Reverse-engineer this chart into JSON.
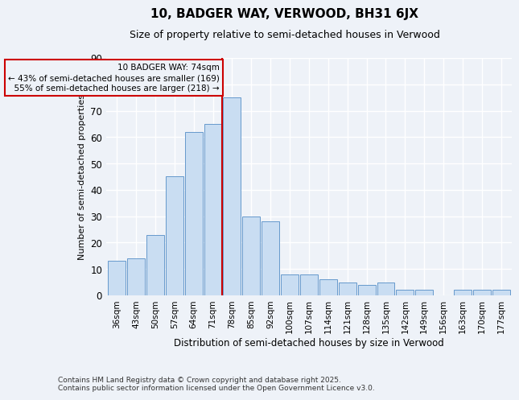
{
  "title": "10, BADGER WAY, VERWOOD, BH31 6JX",
  "subtitle": "Size of property relative to semi-detached houses in Verwood",
  "xlabel": "Distribution of semi-detached houses by size in Verwood",
  "ylabel": "Number of semi-detached properties",
  "categories": [
    "36sqm",
    "43sqm",
    "50sqm",
    "57sqm",
    "64sqm",
    "71sqm",
    "78sqm",
    "85sqm",
    "92sqm",
    "100sqm",
    "107sqm",
    "114sqm",
    "121sqm",
    "128sqm",
    "135sqm",
    "142sqm",
    "149sqm",
    "156sqm",
    "163sqm",
    "170sqm",
    "177sqm"
  ],
  "values": [
    13,
    14,
    23,
    45,
    62,
    65,
    75,
    30,
    28,
    8,
    8,
    6,
    5,
    4,
    5,
    2,
    2,
    0,
    2,
    2,
    2
  ],
  "bar_color": "#c9ddf2",
  "bar_edge_color": "#6699cc",
  "property_line_x": 5.5,
  "annotation_text": "10 BADGER WAY: 74sqm\n← 43% of semi-detached houses are smaller (169)\n  55% of semi-detached houses are larger (218) →",
  "line_color": "#cc0000",
  "box_edge_color": "#cc0000",
  "footer": "Contains HM Land Registry data © Crown copyright and database right 2025.\nContains public sector information licensed under the Open Government Licence v3.0.",
  "bg_color": "#eef2f8",
  "grid_color": "#ffffff",
  "ylim": [
    0,
    90
  ],
  "yticks": [
    0,
    10,
    20,
    30,
    40,
    50,
    60,
    70,
    80,
    90
  ]
}
